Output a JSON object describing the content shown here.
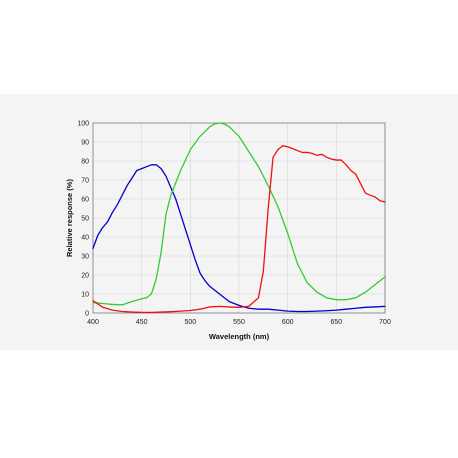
{
  "chart_data": {
    "type": "line",
    "title": "",
    "xlabel": "Wavelength (nm)",
    "ylabel": "Relative response (%)",
    "xlim": [
      400,
      700
    ],
    "ylim": [
      0,
      100
    ],
    "xticks": [
      400,
      450,
      500,
      550,
      600,
      650,
      700
    ],
    "yticks": [
      0,
      10,
      20,
      30,
      40,
      50,
      60,
      70,
      80,
      90,
      100
    ],
    "grid": true,
    "legend": "none",
    "series": [
      {
        "color": "#0000cc",
        "x": [
          400,
          405,
          410,
          415,
          420,
          425,
          430,
          435,
          440,
          445,
          450,
          455,
          460,
          465,
          470,
          475,
          480,
          485,
          490,
          495,
          500,
          505,
          510,
          515,
          520,
          530,
          540,
          550,
          560,
          570,
          580,
          590,
          600,
          610,
          620,
          630,
          640,
          650,
          660,
          670,
          680,
          690,
          700
        ],
        "y": [
          34,
          41,
          45,
          48,
          53,
          57,
          62,
          67,
          71,
          75,
          76,
          77,
          78,
          78,
          76,
          72,
          66,
          60,
          52,
          44,
          36,
          28,
          21,
          17,
          14,
          10,
          6,
          4,
          2.5,
          2,
          2,
          1.5,
          1,
          0.8,
          0.8,
          1,
          1.2,
          1.5,
          2,
          2.5,
          3,
          3.2,
          3.5
        ]
      },
      {
        "color": "#33cc33",
        "x": [
          400,
          410,
          420,
          430,
          440,
          450,
          455,
          460,
          465,
          470,
          475,
          480,
          490,
          500,
          510,
          520,
          525,
          530,
          535,
          540,
          550,
          560,
          570,
          580,
          590,
          600,
          610,
          620,
          630,
          640,
          650,
          660,
          670,
          680,
          690,
          700
        ],
        "y": [
          5.5,
          5,
          4.5,
          4.3,
          6,
          7.5,
          8,
          10,
          18,
          32,
          52,
          62,
          75,
          86,
          93,
          98,
          99.5,
          100,
          99.5,
          98,
          93,
          85,
          77,
          67,
          56,
          42,
          26,
          16,
          11,
          8,
          7,
          7,
          8,
          11,
          15,
          19
        ]
      },
      {
        "color": "#ee1111",
        "x": [
          400,
          410,
          420,
          430,
          440,
          450,
          460,
          470,
          480,
          490,
          500,
          510,
          520,
          530,
          540,
          550,
          560,
          570,
          575,
          580,
          585,
          590,
          595,
          600,
          605,
          610,
          615,
          620,
          625,
          630,
          635,
          640,
          645,
          650,
          655,
          660,
          665,
          670,
          675,
          680,
          685,
          690,
          695,
          700
        ],
        "y": [
          6.5,
          3,
          1.5,
          0.8,
          0.5,
          0.3,
          0.3,
          0.5,
          0.7,
          1,
          1.3,
          2,
          3.2,
          3.5,
          3.2,
          3,
          3.5,
          8,
          22,
          55,
          82,
          86,
          88,
          87.5,
          86.5,
          85.5,
          84.5,
          84.5,
          84,
          83,
          83.5,
          82,
          81,
          80.5,
          80.5,
          78,
          75,
          73,
          68,
          63,
          62,
          61,
          59,
          58.5
        ]
      }
    ]
  }
}
